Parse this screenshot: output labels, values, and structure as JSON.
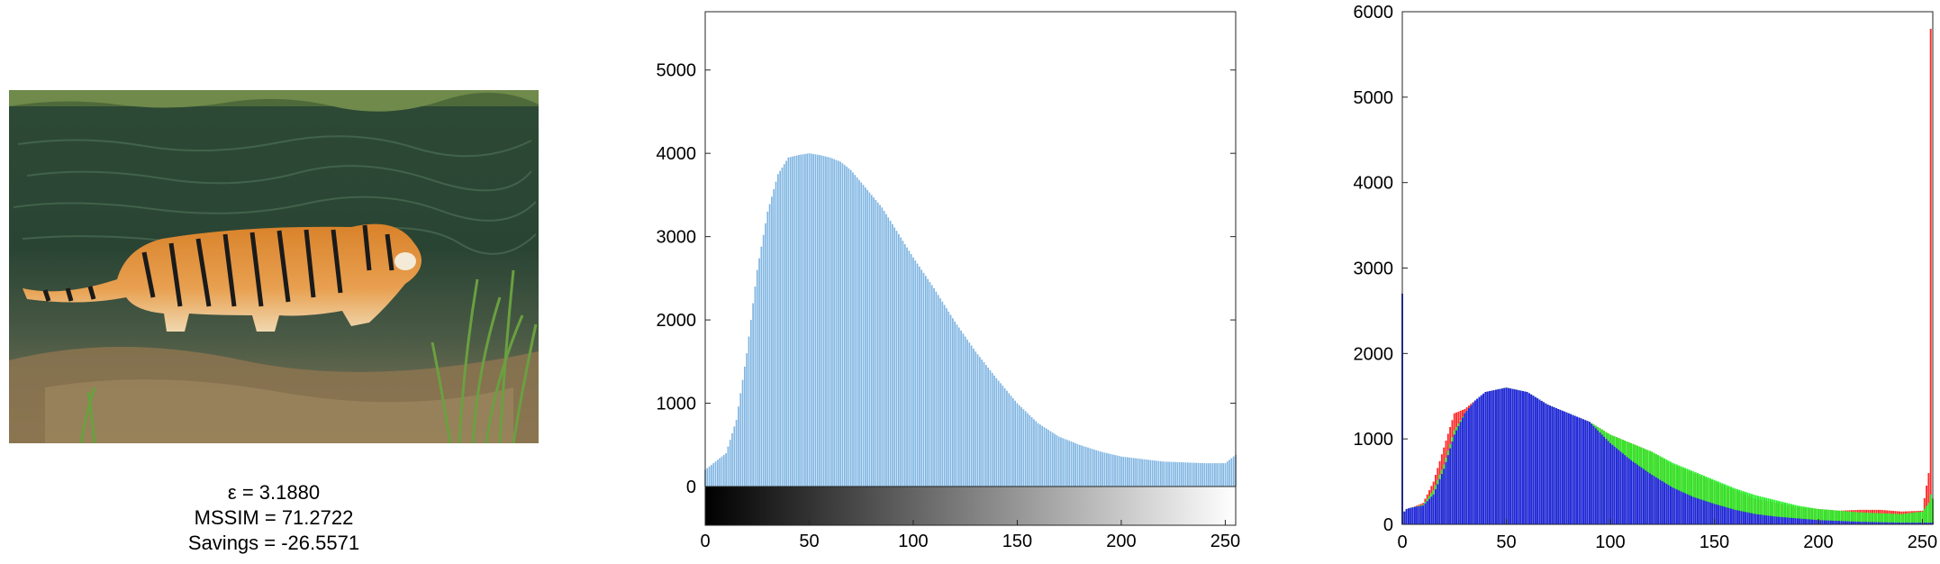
{
  "metrics": {
    "epsilon": "ε = 3.1880",
    "mssim": "MSSIM = 71.2722",
    "savings": "Savings = -26.5571"
  },
  "photo": {
    "subject": "tiger wading in river",
    "icon": "photo-image"
  },
  "colors": {
    "gray_bar": "#7fb5e2",
    "red": "#ff2a2a",
    "green": "#22ee22",
    "blue": "#2222ee"
  },
  "chart_data": [
    {
      "type": "bar",
      "title": "",
      "xlabel": "",
      "ylabel": "",
      "xlim": [
        0,
        255
      ],
      "ylim": [
        0,
        5700
      ],
      "xticks": [
        0,
        50,
        100,
        150,
        200,
        250
      ],
      "yticks": [
        0,
        1000,
        2000,
        3000,
        4000,
        5000
      ],
      "colorbar": "grayscale 0-255",
      "grid": false,
      "x": [
        0,
        10,
        15,
        20,
        25,
        30,
        35,
        40,
        45,
        50,
        55,
        60,
        65,
        70,
        75,
        80,
        85,
        90,
        95,
        100,
        110,
        120,
        130,
        140,
        150,
        160,
        170,
        180,
        190,
        200,
        210,
        220,
        230,
        240,
        250,
        255
      ],
      "values": [
        200,
        400,
        800,
        1600,
        2600,
        3300,
        3750,
        3950,
        3980,
        4000,
        3980,
        3950,
        3900,
        3800,
        3650,
        3500,
        3350,
        3150,
        2950,
        2750,
        2380,
        1980,
        1620,
        1300,
        1000,
        760,
        600,
        500,
        420,
        360,
        330,
        300,
        290,
        280,
        280,
        380
      ]
    },
    {
      "type": "bar",
      "title": "",
      "xlabel": "",
      "ylabel": "",
      "xlim": [
        0,
        255
      ],
      "ylim": [
        0,
        6000
      ],
      "xticks": [
        0,
        50,
        100,
        150,
        200,
        250
      ],
      "yticks": [
        0,
        1000,
        2000,
        3000,
        4000,
        5000,
        6000
      ],
      "grid": false,
      "x": [
        0,
        1,
        2,
        5,
        10,
        15,
        20,
        25,
        30,
        35,
        40,
        50,
        60,
        70,
        80,
        90,
        100,
        110,
        120,
        130,
        140,
        150,
        160,
        170,
        180,
        190,
        200,
        210,
        220,
        230,
        240,
        250,
        253,
        254,
        255
      ],
      "series": [
        {
          "name": "",
          "color": "red",
          "values": [
            2700,
            150,
            180,
            200,
            250,
            500,
            900,
            1300,
            1350,
            1450,
            1550,
            1600,
            1550,
            1400,
            1300,
            1200,
            1050,
            950,
            850,
            700,
            600,
            500,
            400,
            300,
            250,
            200,
            180,
            160,
            170,
            170,
            150,
            160,
            600,
            5800,
            300
          ]
        },
        {
          "name": "",
          "color": "green",
          "values": [
            2700,
            150,
            180,
            200,
            230,
            400,
            700,
            1100,
            1300,
            1450,
            1550,
            1600,
            1550,
            1400,
            1300,
            1200,
            1050,
            950,
            850,
            720,
            620,
            520,
            420,
            340,
            280,
            220,
            180,
            160,
            140,
            130,
            120,
            150,
            250,
            350,
            300
          ]
        },
        {
          "name": "",
          "color": "blue",
          "values": [
            2700,
            150,
            180,
            200,
            220,
            350,
            650,
            1050,
            1300,
            1450,
            1550,
            1600,
            1550,
            1400,
            1300,
            1200,
            950,
            750,
            580,
            430,
            320,
            240,
            170,
            120,
            90,
            70,
            50,
            40,
            30,
            25,
            20,
            20,
            20,
            20,
            20
          ]
        }
      ]
    }
  ]
}
